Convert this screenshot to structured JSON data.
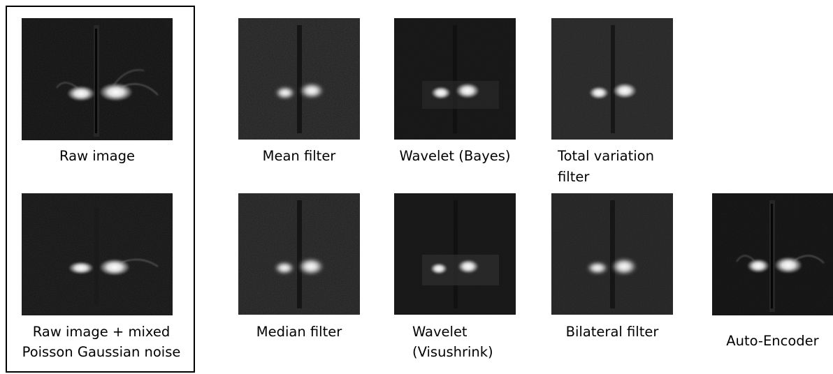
{
  "captions": {
    "raw": "Raw image",
    "noisy_line1": "Raw image + mixed",
    "noisy_line2": "Poisson Gaussian noise",
    "mean": "Mean filter",
    "wavelet_bayes": "Wavelet (Bayes)",
    "tv_line1": "Total variation",
    "tv_line2": "filter",
    "median": "Median filter",
    "wavelet_visu_line1": "Wavelet",
    "wavelet_visu_line2": "(Visushrink)",
    "bilateral": "Bilateral filter",
    "autoencoder": "Auto-Encoder"
  },
  "colors": {
    "frame": "#000000",
    "background": "#ffffff",
    "tile_dark": "#171717",
    "signal": "#ffffff"
  },
  "icons": {
    "input_group": "framed-box"
  }
}
